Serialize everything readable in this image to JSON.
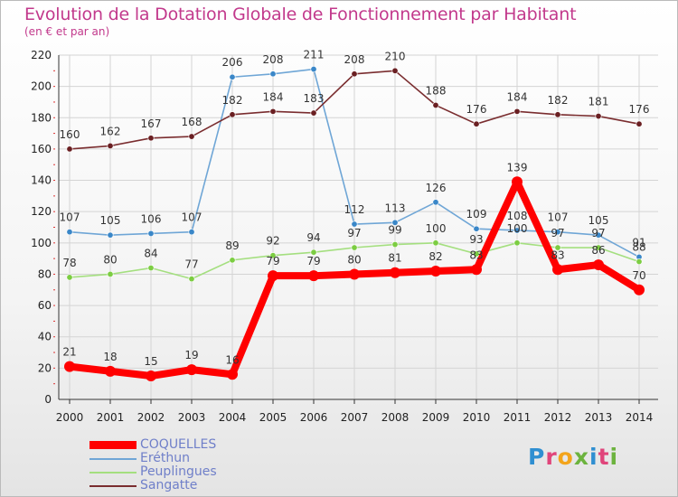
{
  "header": {
    "title": "Evolution de la Dotation Globale de Fonctionnement par Habitant",
    "subtitle": "(en € et par an)"
  },
  "logo": {
    "text": "Proxiti",
    "colors": [
      "#2f8fd1",
      "#6cb33e",
      "#f3a41b",
      "#e0457b"
    ]
  },
  "chart_data": {
    "type": "line",
    "title": "Evolution de la Dotation Globale de Fonctionnement par Habitant",
    "subtitle": "(en € et par an)",
    "xlabel": "",
    "ylabel": "",
    "ylim": [
      0,
      220
    ],
    "yticks": [
      0,
      20,
      40,
      60,
      80,
      100,
      120,
      140,
      160,
      180,
      200,
      220
    ],
    "grid": true,
    "legend_position": "bottom-left",
    "categories": [
      "2000",
      "2001",
      "2002",
      "2003",
      "2004",
      "2005",
      "2006",
      "2007",
      "2008",
      "2009",
      "2010",
      "2011",
      "2012",
      "2013",
      "2014"
    ],
    "series": [
      {
        "name": "COQUELLES",
        "color": "#ff0000",
        "emphasis": true,
        "values": [
          21,
          18,
          15,
          19,
          16,
          79,
          79,
          80,
          81,
          82,
          83,
          139,
          83,
          86,
          70
        ]
      },
      {
        "name": "Eréthun",
        "color": "#6fa6d6",
        "marker": "#3a87c8",
        "emphasis": false,
        "values": [
          107,
          105,
          106,
          107,
          206,
          208,
          211,
          112,
          113,
          126,
          109,
          108,
          107,
          105,
          91
        ]
      },
      {
        "name": "Peuplingues",
        "color": "#a4df7f",
        "marker": "#7ccd42",
        "emphasis": false,
        "values": [
          78,
          80,
          84,
          77,
          89,
          92,
          94,
          97,
          99,
          100,
          93,
          100,
          97,
          97,
          88
        ]
      },
      {
        "name": "Sangatte",
        "color": "#7a2d2f",
        "marker": "#6a1f22",
        "emphasis": false,
        "values": [
          160,
          162,
          167,
          168,
          182,
          184,
          183,
          208,
          210,
          188,
          176,
          184,
          182,
          181,
          176
        ]
      }
    ]
  }
}
